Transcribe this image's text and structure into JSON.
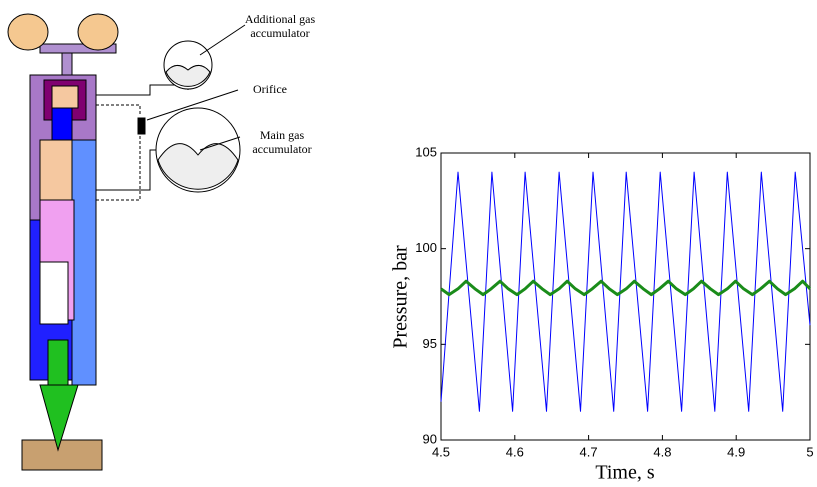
{
  "diagram": {
    "labels": [
      "Additional gas accumulator",
      "Orifice",
      "Main gas accumulator"
    ]
  },
  "chart_data": {
    "type": "line",
    "x_label": "Time, s",
    "y_label": "Pressure, bar",
    "xlim": [
      4.5,
      5
    ],
    "xticks": [
      4.5,
      4.6,
      4.7,
      4.8,
      4.9,
      5
    ],
    "ylim": [
      90,
      105
    ],
    "yticks": [
      90,
      95,
      100,
      105
    ],
    "series": [
      {
        "color": "#0000ff",
        "width": 1,
        "x": [
          4.5,
          4.523,
          4.552,
          4.569,
          4.597,
          4.614,
          4.643,
          4.66,
          4.689,
          4.706,
          4.734,
          4.751,
          4.78,
          4.797,
          4.826,
          4.843,
          4.871,
          4.888,
          4.917,
          4.934,
          4.963,
          4.98,
          5.0
        ],
        "values": [
          92,
          104,
          91.5,
          104,
          91.5,
          104,
          91.5,
          104,
          91.5,
          104,
          91.5,
          104,
          91.5,
          104,
          91.5,
          104,
          91.5,
          104,
          91.5,
          104,
          91.5,
          104,
          96
        ]
      },
      {
        "color": "#1a8c1a",
        "width": 3,
        "x": [
          4.5,
          4.511,
          4.523,
          4.534,
          4.546,
          4.557,
          4.568,
          4.58,
          4.591,
          4.603,
          4.614,
          4.625,
          4.637,
          4.648,
          4.66,
          4.671,
          4.682,
          4.694,
          4.705,
          4.717,
          4.728,
          4.739,
          4.751,
          4.762,
          4.774,
          4.785,
          4.796,
          4.808,
          4.819,
          4.831,
          4.842,
          4.853,
          4.865,
          4.876,
          4.888,
          4.899,
          4.91,
          4.922,
          4.933,
          4.945,
          4.956,
          4.967,
          4.979,
          4.99,
          5.0
        ],
        "values": [
          97.9,
          97.6,
          97.9,
          98.3,
          97.9,
          97.6,
          97.9,
          98.3,
          97.9,
          97.6,
          97.9,
          98.3,
          97.9,
          97.6,
          97.9,
          98.3,
          97.9,
          97.6,
          97.9,
          98.3,
          97.9,
          97.6,
          97.9,
          98.3,
          97.9,
          97.6,
          97.9,
          98.3,
          97.9,
          97.6,
          97.9,
          98.3,
          97.9,
          97.6,
          97.9,
          98.3,
          97.9,
          97.6,
          97.9,
          98.3,
          97.9,
          97.6,
          97.9,
          98.3,
          97.9
        ]
      }
    ]
  }
}
